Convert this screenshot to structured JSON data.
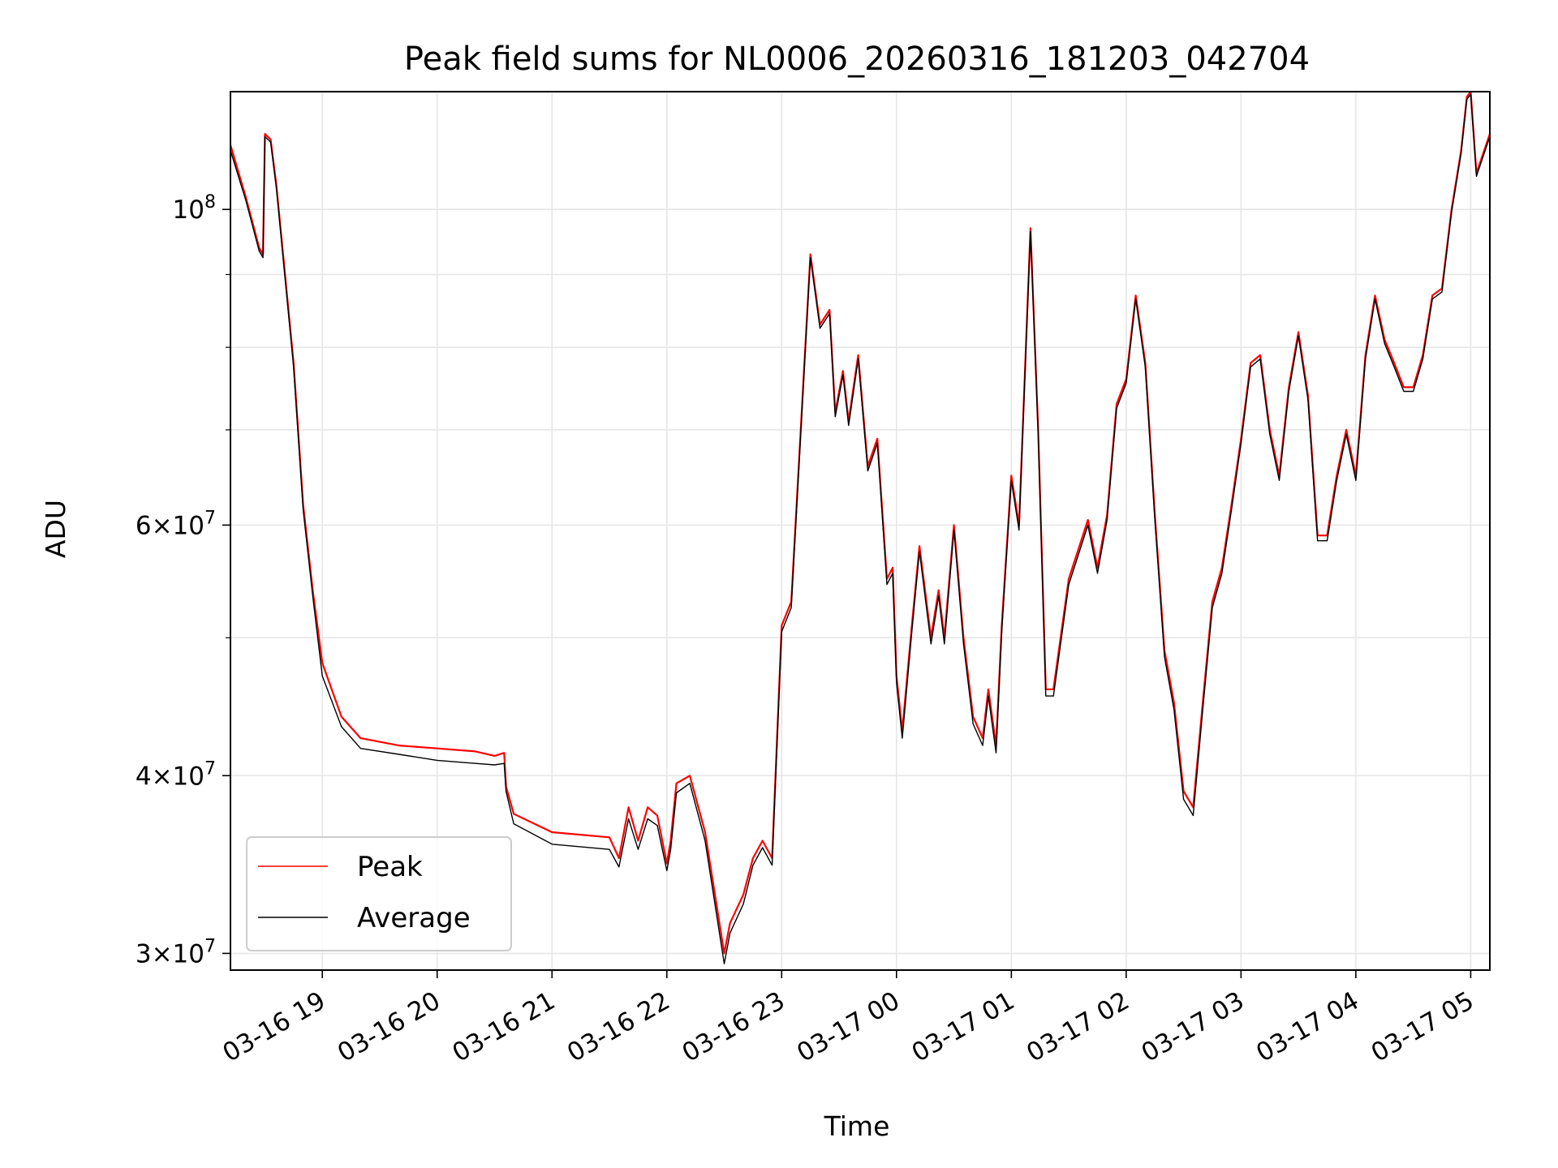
{
  "chart_data": {
    "type": "line",
    "title": "Peak field sums for NL0006_20260316_181203_042704",
    "xlabel": "Time",
    "ylabel": "ADU",
    "xlim": [
      "2026-03-16 18:12",
      "2026-03-17 05:10"
    ],
    "ylim": [
      29200000,
      121000000
    ],
    "yscale": "log",
    "grid": true,
    "legend_position": "lower-left",
    "x_ticks": [
      "03-16 19",
      "03-16 20",
      "03-16 21",
      "03-16 22",
      "03-16 23",
      "03-17 00",
      "03-17 01",
      "03-17 02",
      "03-17 03",
      "03-17 04",
      "03-17 05"
    ],
    "y_ticks": [
      {
        "value": 30000000,
        "mant": "3",
        "exp": "7"
      },
      {
        "value": 40000000,
        "mant": "4",
        "exp": "7"
      },
      {
        "value": 60000000,
        "mant": "6",
        "exp": "7"
      },
      {
        "value": 100000000,
        "mant": "",
        "exp": "8"
      }
    ],
    "y_minor_ticks": [
      50000000,
      70000000,
      80000000,
      90000000
    ],
    "series": [
      {
        "name": "Peak",
        "color": "#ff0000",
        "x": [
          "2026-03-16 18:12",
          "2026-03-16 18:20",
          "2026-03-16 18:27",
          "2026-03-16 18:29",
          "2026-03-16 18:30",
          "2026-03-16 18:33",
          "2026-03-16 18:36",
          "2026-03-16 18:45",
          "2026-03-16 18:50",
          "2026-03-16 18:55",
          "2026-03-16 19:00",
          "2026-03-16 19:10",
          "2026-03-16 19:20",
          "2026-03-16 19:40",
          "2026-03-16 20:00",
          "2026-03-16 20:20",
          "2026-03-16 20:30",
          "2026-03-16 20:35",
          "2026-03-16 20:36",
          "2026-03-16 20:40",
          "2026-03-16 21:00",
          "2026-03-16 21:30",
          "2026-03-16 21:35",
          "2026-03-16 21:40",
          "2026-03-16 21:45",
          "2026-03-16 21:50",
          "2026-03-16 21:55",
          "2026-03-16 22:00",
          "2026-03-16 22:02",
          "2026-03-16 22:05",
          "2026-03-16 22:12",
          "2026-03-16 22:20",
          "2026-03-16 22:30",
          "2026-03-16 22:33",
          "2026-03-16 22:40",
          "2026-03-16 22:45",
          "2026-03-16 22:50",
          "2026-03-16 22:55",
          "2026-03-16 23:00",
          "2026-03-16 23:05",
          "2026-03-16 23:15",
          "2026-03-16 23:20",
          "2026-03-16 23:25",
          "2026-03-16 23:28",
          "2026-03-16 23:32",
          "2026-03-16 23:35",
          "2026-03-16 23:40",
          "2026-03-16 23:45",
          "2026-03-16 23:50",
          "2026-03-16 23:55",
          "2026-03-16 23:58",
          "2026-03-17 00:00",
          "2026-03-17 00:03",
          "2026-03-17 00:08",
          "2026-03-17 00:12",
          "2026-03-17 00:18",
          "2026-03-17 00:22",
          "2026-03-17 00:25",
          "2026-03-17 00:30",
          "2026-03-17 00:35",
          "2026-03-17 00:40",
          "2026-03-17 00:45",
          "2026-03-17 00:48",
          "2026-03-17 00:52",
          "2026-03-17 00:55",
          "2026-03-17 01:00",
          "2026-03-17 01:04",
          "2026-03-17 01:10",
          "2026-03-17 01:14",
          "2026-03-17 01:18",
          "2026-03-17 01:22",
          "2026-03-17 01:30",
          "2026-03-17 01:40",
          "2026-03-17 01:45",
          "2026-03-17 01:50",
          "2026-03-17 01:55",
          "2026-03-17 02:00",
          "2026-03-17 02:05",
          "2026-03-17 02:10",
          "2026-03-17 02:15",
          "2026-03-17 02:20",
          "2026-03-17 02:25",
          "2026-03-17 02:30",
          "2026-03-17 02:35",
          "2026-03-17 02:40",
          "2026-03-17 02:45",
          "2026-03-17 02:50",
          "2026-03-17 02:55",
          "2026-03-17 03:00",
          "2026-03-17 03:05",
          "2026-03-17 03:10",
          "2026-03-17 03:15",
          "2026-03-17 03:20",
          "2026-03-17 03:25",
          "2026-03-17 03:30",
          "2026-03-17 03:35",
          "2026-03-17 03:40",
          "2026-03-17 03:45",
          "2026-03-17 03:50",
          "2026-03-17 03:55",
          "2026-03-17 04:00",
          "2026-03-17 04:05",
          "2026-03-17 04:10",
          "2026-03-17 04:15",
          "2026-03-17 04:20",
          "2026-03-17 04:25",
          "2026-03-17 04:30",
          "2026-03-17 04:35",
          "2026-03-17 04:40",
          "2026-03-17 04:45",
          "2026-03-17 04:50",
          "2026-03-17 04:55",
          "2026-03-17 04:58",
          "2026-03-17 05:00",
          "2026-03-17 05:03",
          "2026-03-17 05:06",
          "2026-03-17 05:10"
        ],
        "values": [
          111000000,
          102000000,
          94000000,
          93000000,
          113000000,
          112000000,
          104000000,
          78000000,
          62000000,
          54000000,
          48000000,
          44000000,
          42500000,
          42000000,
          41800000,
          41600000,
          41300000,
          41500000,
          39300000,
          37600000,
          36500000,
          36200000,
          35000000,
          38000000,
          36000000,
          38000000,
          37500000,
          34700000,
          36000000,
          39500000,
          40000000,
          36500000,
          30000000,
          31500000,
          33000000,
          35000000,
          36000000,
          35000000,
          51000000,
          53000000,
          93000000,
          83000000,
          85000000,
          72000000,
          77000000,
          71000000,
          79000000,
          66000000,
          69000000,
          55000000,
          56000000,
          47000000,
          43000000,
          51000000,
          58000000,
          50000000,
          54000000,
          50000000,
          60000000,
          50000000,
          44000000,
          42500000,
          46000000,
          42000000,
          51000000,
          65000000,
          60000000,
          97000000,
          70000000,
          46000000,
          46000000,
          55000000,
          60500000,
          56000000,
          61000000,
          73000000,
          76000000,
          87000000,
          78000000,
          61000000,
          49000000,
          45000000,
          39000000,
          38000000,
          45000000,
          53000000,
          56000000,
          62000000,
          69000000,
          78000000,
          79000000,
          70000000,
          65000000,
          75000000,
          82000000,
          74000000,
          59000000,
          59000000,
          65000000,
          70000000,
          65000000,
          79000000,
          87000000,
          81000000,
          78000000,
          75000000,
          75000000,
          79000000,
          87000000,
          88000000,
          100000000,
          110000000,
          120000000,
          121000000,
          106000000,
          109000000,
          113000000
        ]
      },
      {
        "name": "Average",
        "color": "#000000",
        "x": [
          "2026-03-16 18:12",
          "2026-03-16 18:20",
          "2026-03-16 18:27",
          "2026-03-16 18:29",
          "2026-03-16 18:30",
          "2026-03-16 18:33",
          "2026-03-16 18:36",
          "2026-03-16 18:45",
          "2026-03-16 18:50",
          "2026-03-16 18:55",
          "2026-03-16 19:00",
          "2026-03-16 19:10",
          "2026-03-16 19:20",
          "2026-03-16 19:40",
          "2026-03-16 20:00",
          "2026-03-16 20:20",
          "2026-03-16 20:30",
          "2026-03-16 20:35",
          "2026-03-16 20:36",
          "2026-03-16 20:40",
          "2026-03-16 21:00",
          "2026-03-16 21:30",
          "2026-03-16 21:35",
          "2026-03-16 21:40",
          "2026-03-16 21:45",
          "2026-03-16 21:50",
          "2026-03-16 21:55",
          "2026-03-16 22:00",
          "2026-03-16 22:02",
          "2026-03-16 22:05",
          "2026-03-16 22:12",
          "2026-03-16 22:20",
          "2026-03-16 22:30",
          "2026-03-16 22:33",
          "2026-03-16 22:40",
          "2026-03-16 22:45",
          "2026-03-16 22:50",
          "2026-03-16 22:55",
          "2026-03-16 23:00",
          "2026-03-16 23:05",
          "2026-03-16 23:15",
          "2026-03-16 23:20",
          "2026-03-16 23:25",
          "2026-03-16 23:28",
          "2026-03-16 23:32",
          "2026-03-16 23:35",
          "2026-03-16 23:40",
          "2026-03-16 23:45",
          "2026-03-16 23:50",
          "2026-03-16 23:55",
          "2026-03-16 23:58",
          "2026-03-17 00:00",
          "2026-03-17 00:03",
          "2026-03-17 00:08",
          "2026-03-17 00:12",
          "2026-03-17 00:18",
          "2026-03-17 00:22",
          "2026-03-17 00:25",
          "2026-03-17 00:30",
          "2026-03-17 00:35",
          "2026-03-17 00:40",
          "2026-03-17 00:45",
          "2026-03-17 00:48",
          "2026-03-17 00:52",
          "2026-03-17 00:55",
          "2026-03-17 01:00",
          "2026-03-17 01:04",
          "2026-03-17 01:10",
          "2026-03-17 01:14",
          "2026-03-17 01:18",
          "2026-03-17 01:22",
          "2026-03-17 01:30",
          "2026-03-17 01:40",
          "2026-03-17 01:45",
          "2026-03-17 01:50",
          "2026-03-17 01:55",
          "2026-03-17 02:00",
          "2026-03-17 02:05",
          "2026-03-17 02:10",
          "2026-03-17 02:15",
          "2026-03-17 02:20",
          "2026-03-17 02:25",
          "2026-03-17 02:30",
          "2026-03-17 02:35",
          "2026-03-17 02:40",
          "2026-03-17 02:45",
          "2026-03-17 02:50",
          "2026-03-17 02:55",
          "2026-03-17 03:00",
          "2026-03-17 03:05",
          "2026-03-17 03:10",
          "2026-03-17 03:15",
          "2026-03-17 03:20",
          "2026-03-17 03:25",
          "2026-03-17 03:30",
          "2026-03-17 03:35",
          "2026-03-17 03:40",
          "2026-03-17 03:45",
          "2026-03-17 03:50",
          "2026-03-17 03:55",
          "2026-03-17 04:00",
          "2026-03-17 04:05",
          "2026-03-17 04:10",
          "2026-03-17 04:15",
          "2026-03-17 04:20",
          "2026-03-17 04:25",
          "2026-03-17 04:30",
          "2026-03-17 04:35",
          "2026-03-17 04:40",
          "2026-03-17 04:45",
          "2026-03-17 04:50",
          "2026-03-17 04:55",
          "2026-03-17 04:58",
          "2026-03-17 05:00",
          "2026-03-17 05:03",
          "2026-03-17 05:06",
          "2026-03-17 05:10"
        ],
        "values": [
          110000000,
          101500000,
          93500000,
          92500000,
          112500000,
          111500000,
          103500000,
          77500000,
          61500000,
          53500000,
          47000000,
          43300000,
          41800000,
          41400000,
          41000000,
          40800000,
          40700000,
          40800000,
          39000000,
          37000000,
          35800000,
          35500000,
          34500000,
          37300000,
          35500000,
          37300000,
          36900000,
          34300000,
          35500000,
          38900000,
          39500000,
          36000000,
          29500000,
          31000000,
          32500000,
          34600000,
          35600000,
          34600000,
          50500000,
          52500000,
          92500000,
          82500000,
          84500000,
          71500000,
          76500000,
          70500000,
          78500000,
          65500000,
          68500000,
          54500000,
          55500000,
          46500000,
          42500000,
          50500000,
          57500000,
          49500000,
          53500000,
          49500000,
          59500000,
          49500000,
          43500000,
          42000000,
          45500000,
          41500000,
          50500000,
          64500000,
          59500000,
          96500000,
          69500000,
          45500000,
          45500000,
          54500000,
          60000000,
          55500000,
          60500000,
          72500000,
          75500000,
          86500000,
          77500000,
          60500000,
          48500000,
          44500000,
          38500000,
          37500000,
          44500000,
          52500000,
          55500000,
          61500000,
          68500000,
          77500000,
          78500000,
          69500000,
          64500000,
          74500000,
          81500000,
          73500000,
          58500000,
          58500000,
          64500000,
          69500000,
          64500000,
          78500000,
          86500000,
          80500000,
          77500000,
          74500000,
          74500000,
          78500000,
          86500000,
          87500000,
          99500000,
          109500000,
          119500000,
          120500000,
          105500000,
          108500000,
          112500000
        ]
      }
    ]
  }
}
